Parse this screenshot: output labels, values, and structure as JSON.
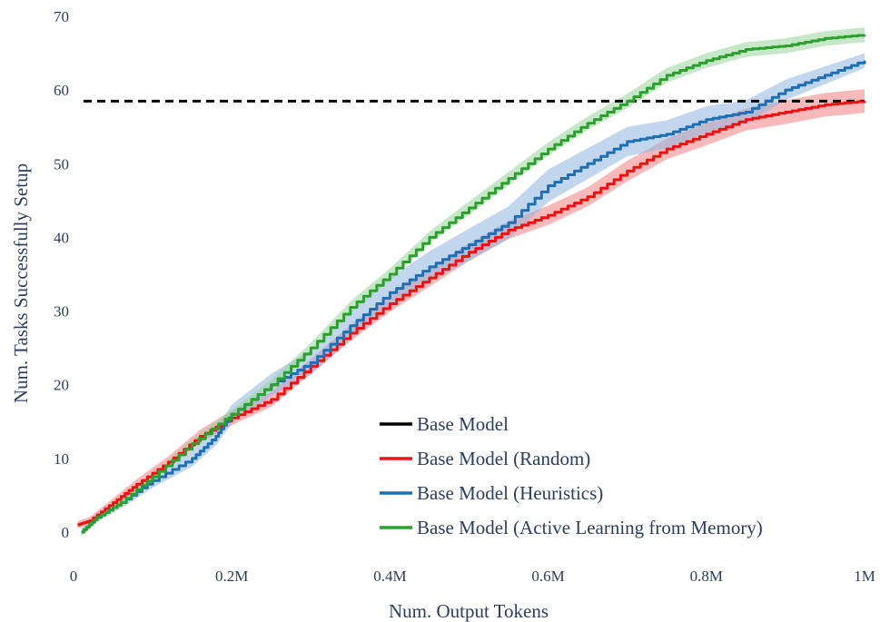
{
  "chart_data": {
    "type": "line",
    "title": "",
    "xlabel": "Num. Output Tokens",
    "ylabel": "Num. Tasks Successfully Setup",
    "xlim": [
      0,
      1000000
    ],
    "ylim": [
      0,
      70
    ],
    "x_ticks": [
      {
        "value": 0,
        "label": "0"
      },
      {
        "value": 200000,
        "label": "0.2M"
      },
      {
        "value": 400000,
        "label": "0.4M"
      },
      {
        "value": 600000,
        "label": "0.6M"
      },
      {
        "value": 800000,
        "label": "0.8M"
      },
      {
        "value": 1000000,
        "label": "1M"
      }
    ],
    "y_ticks": [
      {
        "value": 0,
        "label": "0"
      },
      {
        "value": 10,
        "label": "10"
      },
      {
        "value": 20,
        "label": "20"
      },
      {
        "value": 30,
        "label": "30"
      },
      {
        "value": 40,
        "label": "40"
      },
      {
        "value": 50,
        "label": "50"
      },
      {
        "value": 60,
        "label": "60"
      },
      {
        "value": 70,
        "label": "70"
      }
    ],
    "grid": false,
    "legend_position": "bottom-right",
    "reference_line": {
      "name": "Base Model",
      "y": 58.5,
      "style": "dashed",
      "color": "#000000"
    },
    "series": [
      {
        "name": "Base Model (Random)",
        "color": "#ee1111",
        "band_color": "#f08080",
        "x": [
          5000,
          20000,
          50000,
          80000,
          120000,
          160000,
          200000,
          250000,
          300000,
          350000,
          400000,
          450000,
          500000,
          550000,
          600000,
          650000,
          700000,
          750000,
          800000,
          850000,
          900000,
          950000,
          1000000
        ],
        "y": [
          1,
          1.5,
          4,
          6.5,
          9.5,
          13,
          15.5,
          18,
          22.5,
          27,
          31,
          34.5,
          38,
          41,
          43,
          45.5,
          49,
          52,
          54,
          56,
          57,
          58,
          58.5
        ],
        "band_half_width": [
          0.5,
          0.5,
          0.6,
          0.7,
          0.8,
          0.9,
          1,
          1,
          1,
          1.1,
          1.1,
          1.2,
          1.2,
          1.2,
          1.3,
          1.3,
          1.4,
          1.4,
          1.5,
          1.5,
          1.6,
          1.6,
          1.6
        ]
      },
      {
        "name": "Base Model (Heuristics)",
        "color": "#1f6fb4",
        "band_color": "#8fb7df",
        "x": [
          10000,
          30000,
          60000,
          100000,
          150000,
          180000,
          200000,
          250000,
          300000,
          350000,
          400000,
          450000,
          500000,
          550000,
          600000,
          650000,
          700000,
          750000,
          800000,
          850000,
          900000,
          950000,
          1000000
        ],
        "y": [
          0,
          2,
          4,
          7,
          10,
          13,
          16,
          20,
          23,
          28,
          32.5,
          36,
          39,
          42,
          47,
          50,
          53,
          54,
          56,
          57,
          60,
          62,
          64
        ],
        "band_half_width": [
          0.5,
          0.6,
          0.8,
          1,
          1.1,
          1.2,
          1.3,
          1.5,
          1.7,
          1.9,
          2,
          2.1,
          2.2,
          2.2,
          2.2,
          2.1,
          2,
          1.9,
          1.8,
          1.6,
          1.4,
          1.2,
          1
        ]
      },
      {
        "name": "Base Model (Active Learning from Memory)",
        "color": "#2ca02c",
        "band_color": "#98d49a",
        "x": [
          10000,
          30000,
          60000,
          100000,
          150000,
          200000,
          250000,
          300000,
          350000,
          400000,
          450000,
          500000,
          550000,
          600000,
          650000,
          700000,
          750000,
          800000,
          850000,
          900000,
          950000,
          1000000
        ],
        "y": [
          0,
          2,
          4,
          7.5,
          12,
          16,
          20,
          25,
          30.5,
          35,
          40,
          44,
          48,
          52,
          55.5,
          58.5,
          62,
          64,
          65.5,
          66,
          67,
          67.5
        ],
        "band_half_width": [
          0.4,
          0.4,
          0.5,
          0.5,
          0.6,
          0.6,
          0.7,
          0.7,
          0.8,
          0.8,
          0.8,
          0.9,
          0.9,
          0.9,
          0.9,
          1,
          1,
          1,
          1,
          1,
          1,
          1
        ]
      }
    ],
    "legend": [
      {
        "label": "Base Model",
        "color": "#000000"
      },
      {
        "label": "Base Model (Random)",
        "color": "#ee1111"
      },
      {
        "label": "Base Model (Heuristics)",
        "color": "#1f6fb4"
      },
      {
        "label": "Base Model (Active Learning from Memory)",
        "color": "#2ca02c"
      }
    ]
  }
}
